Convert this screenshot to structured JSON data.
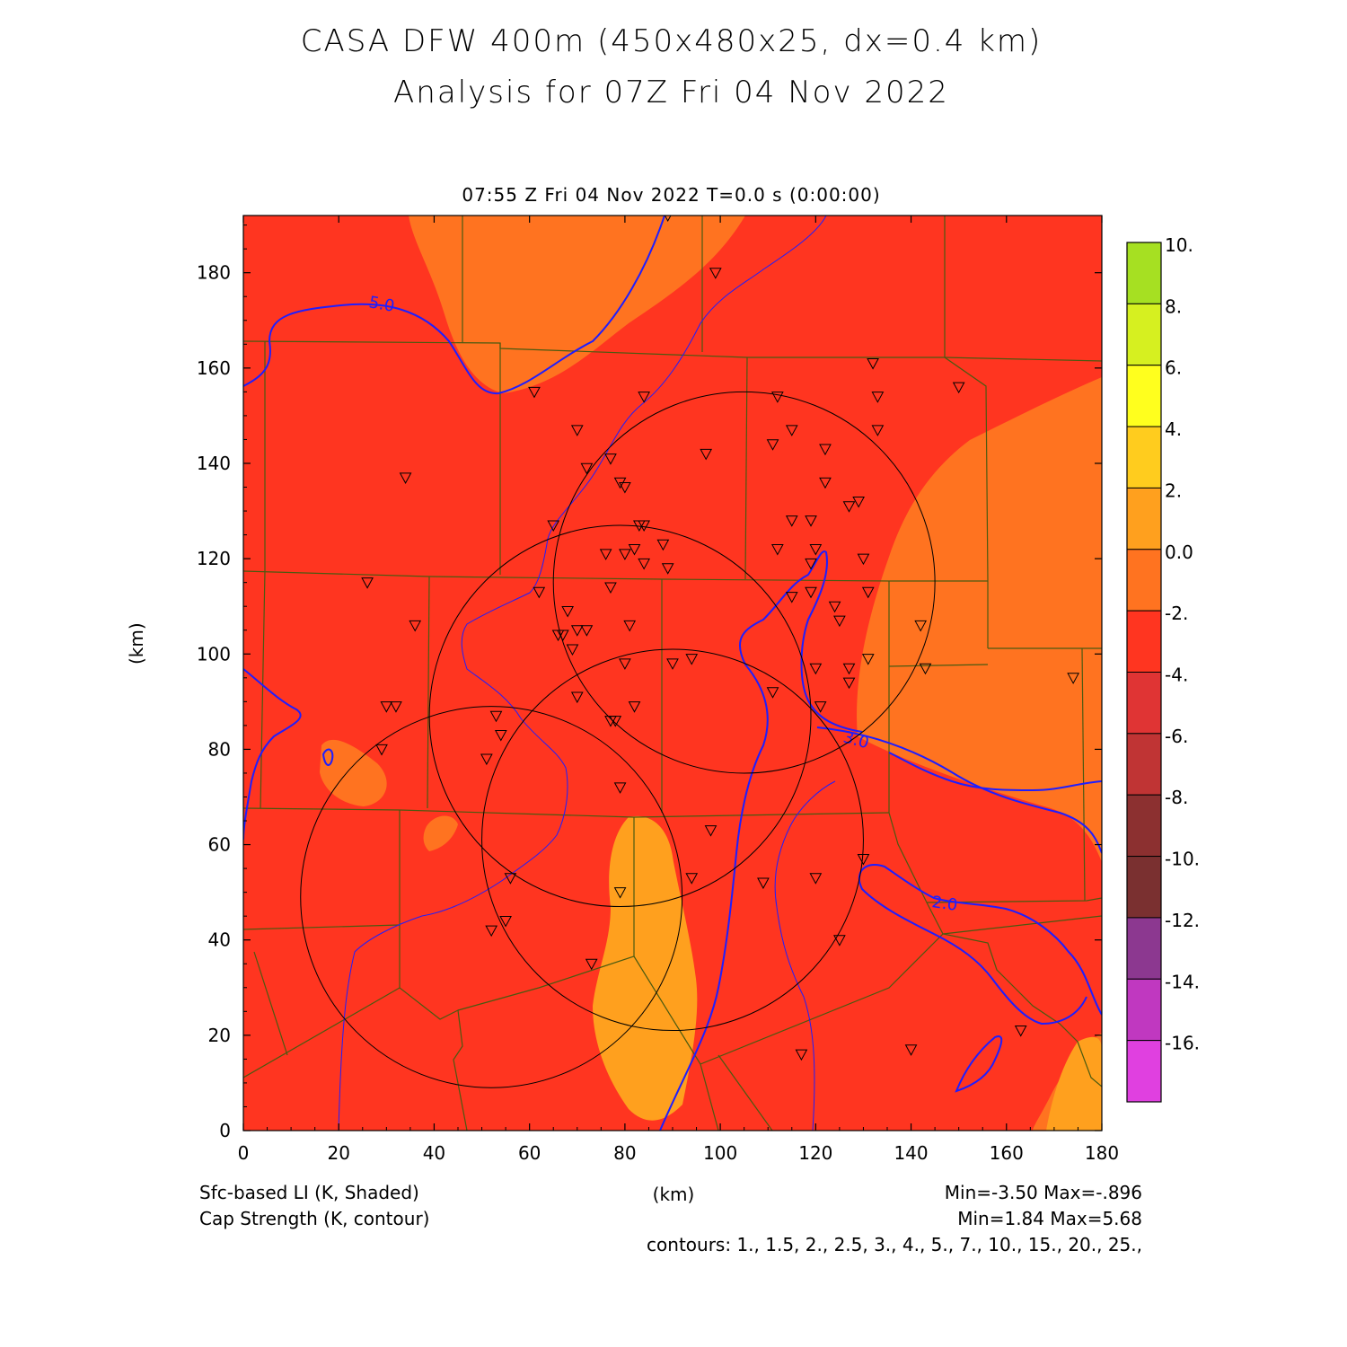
{
  "title": {
    "line1": "CASA DFW 400m (450x480x25, dx=0.4 km)",
    "line2": "Analysis for 07Z Fri 04 Nov 2022"
  },
  "timestamp": "07:55 Z Fri 04 Nov 2022    T=0.0 s (0:00:00)",
  "axes": {
    "x_label": "(km)",
    "y_label": "(km)",
    "x_ticks": [
      "0",
      "20",
      "40",
      "60",
      "80",
      "100",
      "120",
      "140",
      "160",
      "180"
    ],
    "y_ticks": [
      "0",
      "20",
      "40",
      "60",
      "80",
      "100",
      "120",
      "140",
      "160",
      "180"
    ],
    "x_range": [
      0,
      180
    ],
    "y_range": [
      0,
      192
    ]
  },
  "colorbar": {
    "labels": [
      "10.",
      "8.",
      "6.",
      "4.",
      "2.",
      "0.0",
      "-2.",
      "-4.",
      "-6.",
      "-8.",
      "-10.",
      "-12.",
      "-14.",
      "-16."
    ],
    "bins": [
      {
        "from": 10,
        "to": 8,
        "color": "#a6e022"
      },
      {
        "from": 8,
        "to": 6,
        "color": "#d6f020"
      },
      {
        "from": 6,
        "to": 4,
        "color": "#ffff1e"
      },
      {
        "from": 4,
        "to": 2,
        "color": "#ffcc1e"
      },
      {
        "from": 2,
        "to": 0,
        "color": "#ffa01e"
      },
      {
        "from": 0,
        "to": -2,
        "color": "#ff7320"
      },
      {
        "from": -2,
        "to": -4,
        "color": "#ff3520"
      },
      {
        "from": -4,
        "to": -6,
        "color": "#e03434"
      },
      {
        "from": -6,
        "to": -8,
        "color": "#c03434"
      },
      {
        "from": -8,
        "to": -10,
        "color": "#8c3030"
      },
      {
        "from": -10,
        "to": -12,
        "color": "#7a3030"
      },
      {
        "from": -12,
        "to": -14,
        "color": "#8c3890"
      },
      {
        "from": -14,
        "to": -16,
        "color": "#c038c0"
      },
      {
        "from": -16,
        "to": -18,
        "color": "#e040e0"
      }
    ]
  },
  "colors": {
    "shade_main": "#ff3520",
    "shade_light": "#ff7320",
    "shade_lighter": "#ffa01e",
    "contour": "#1e1eff",
    "county_lines": "#4a5a10",
    "radar_rings": "#000000"
  },
  "contour_labels": [
    "5.0",
    "3.0",
    "2.0"
  ],
  "radars": [
    {
      "x": 52,
      "y": 49,
      "r": 40
    },
    {
      "x": 79,
      "y": 87,
      "r": 40
    },
    {
      "x": 90,
      "y": 61,
      "r": 40
    },
    {
      "x": 105,
      "y": 115,
      "r": 40
    }
  ],
  "stations": [
    [
      89,
      192
    ],
    [
      99,
      180
    ],
    [
      61,
      155
    ],
    [
      84,
      154
    ],
    [
      150,
      156
    ],
    [
      132,
      161
    ],
    [
      133,
      154
    ],
    [
      133,
      147
    ],
    [
      112,
      154
    ],
    [
      115,
      147
    ],
    [
      111,
      144
    ],
    [
      122,
      143
    ],
    [
      70,
      147
    ],
    [
      72,
      139
    ],
    [
      77,
      141
    ],
    [
      97,
      142
    ],
    [
      34,
      137
    ],
    [
      79,
      136
    ],
    [
      80,
      135
    ],
    [
      122,
      136
    ],
    [
      127,
      131
    ],
    [
      129,
      132
    ],
    [
      115,
      128
    ],
    [
      119,
      128
    ],
    [
      65,
      127
    ],
    [
      83,
      127
    ],
    [
      84,
      127
    ],
    [
      76,
      121
    ],
    [
      80,
      121
    ],
    [
      82,
      122
    ],
    [
      88,
      123
    ],
    [
      112,
      122
    ],
    [
      120,
      122
    ],
    [
      119,
      119
    ],
    [
      130,
      120
    ],
    [
      84,
      119
    ],
    [
      89,
      118
    ],
    [
      26,
      115
    ],
    [
      62,
      113
    ],
    [
      77,
      114
    ],
    [
      131,
      113
    ],
    [
      115,
      112
    ],
    [
      119,
      113
    ],
    [
      124,
      110
    ],
    [
      125,
      107
    ],
    [
      68,
      109
    ],
    [
      66,
      104
    ],
    [
      67,
      104
    ],
    [
      70,
      105
    ],
    [
      72,
      105
    ],
    [
      81,
      106
    ],
    [
      36,
      106
    ],
    [
      142,
      106
    ],
    [
      69,
      101
    ],
    [
      80,
      98
    ],
    [
      90,
      98
    ],
    [
      94,
      99
    ],
    [
      120,
      97
    ],
    [
      127,
      97
    ],
    [
      143,
      97
    ],
    [
      131,
      99
    ],
    [
      174,
      95
    ],
    [
      127,
      94
    ],
    [
      111,
      92
    ],
    [
      70,
      91
    ],
    [
      30,
      89
    ],
    [
      32,
      89
    ],
    [
      121,
      89
    ],
    [
      82,
      89
    ],
    [
      53,
      87
    ],
    [
      77,
      86
    ],
    [
      78,
      86
    ],
    [
      54,
      83
    ],
    [
      29,
      80
    ],
    [
      51,
      78
    ],
    [
      79,
      72
    ],
    [
      98,
      63
    ],
    [
      130,
      57
    ],
    [
      56,
      53
    ],
    [
      94,
      53
    ],
    [
      109,
      52
    ],
    [
      120,
      53
    ],
    [
      79,
      50
    ],
    [
      55,
      44
    ],
    [
      52,
      42
    ],
    [
      125,
      40
    ],
    [
      73,
      35
    ],
    [
      163,
      21
    ],
    [
      117,
      16
    ],
    [
      140,
      17
    ]
  ],
  "legend": {
    "field": "Sfc-based LI (K, Shaded)",
    "contour": "Cap Strength (K, contour)",
    "field_minmax": "Min=-3.50 Max=-.896",
    "contour_minmax": "Min=1.84 Max=5.68",
    "contours": "contours: 1., 1.5, 2., 2.5, 3., 4., 5., 7., 10., 15., 20., 25.,"
  }
}
